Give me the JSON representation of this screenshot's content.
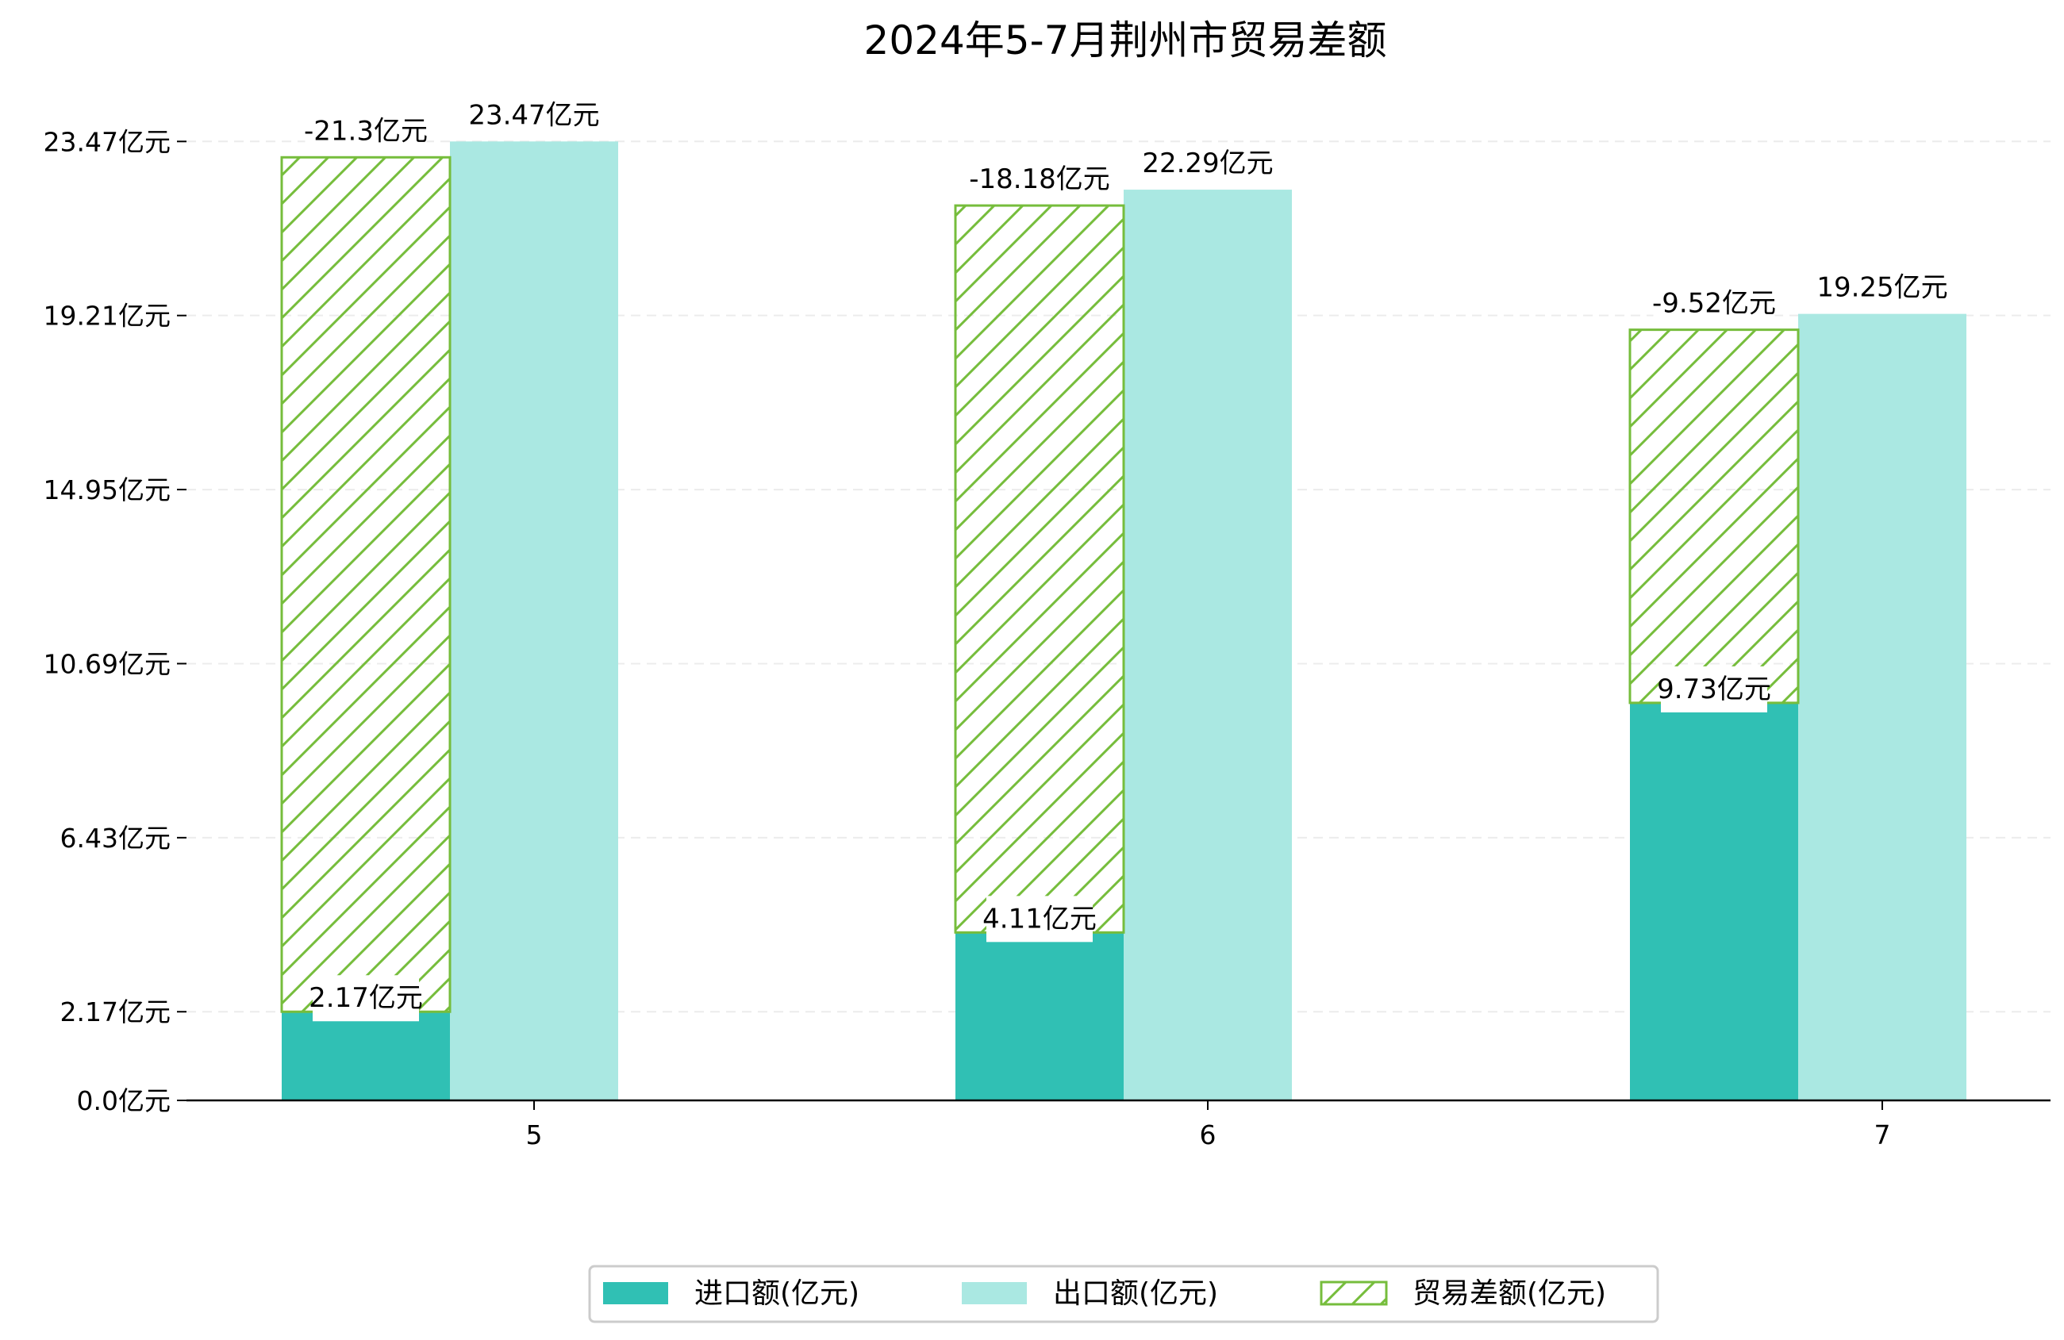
{
  "chart_data": {
    "type": "bar",
    "title": "2024年5-7月荆州市贸易差额",
    "xlabel": "",
    "ylabel": "",
    "categories": [
      "5",
      "6",
      "7"
    ],
    "series": [
      {
        "name": "进口额(亿元)",
        "values": [
          2.17,
          4.11,
          9.73
        ],
        "labels": [
          "2.17亿元",
          "4.11亿元",
          "9.73亿元"
        ],
        "color": "#30c0b4"
      },
      {
        "name": "出口额(亿元)",
        "values": [
          23.47,
          22.29,
          19.25
        ],
        "labels": [
          "23.47亿元",
          "22.29亿元",
          "19.25亿元"
        ],
        "color": "#aae8e2"
      },
      {
        "name": "贸易差额(亿元)",
        "values": [
          -21.3,
          -18.18,
          -9.52
        ],
        "labels": [
          "-21.3亿元",
          "-18.18亿元",
          "-9.52亿元"
        ],
        "color": "#76bd3c",
        "style": "hatched"
      }
    ],
    "yticks": [
      0.0,
      2.17,
      6.43,
      10.69,
      14.95,
      19.21,
      23.47
    ],
    "ytick_labels": [
      "0.0亿元",
      "2.17亿元",
      "6.43亿元",
      "10.69亿元",
      "14.95亿元",
      "19.21亿元",
      "23.47亿元"
    ],
    "ylim": [
      0,
      26.9
    ],
    "grid": true,
    "legend_position": "bottom-center"
  }
}
